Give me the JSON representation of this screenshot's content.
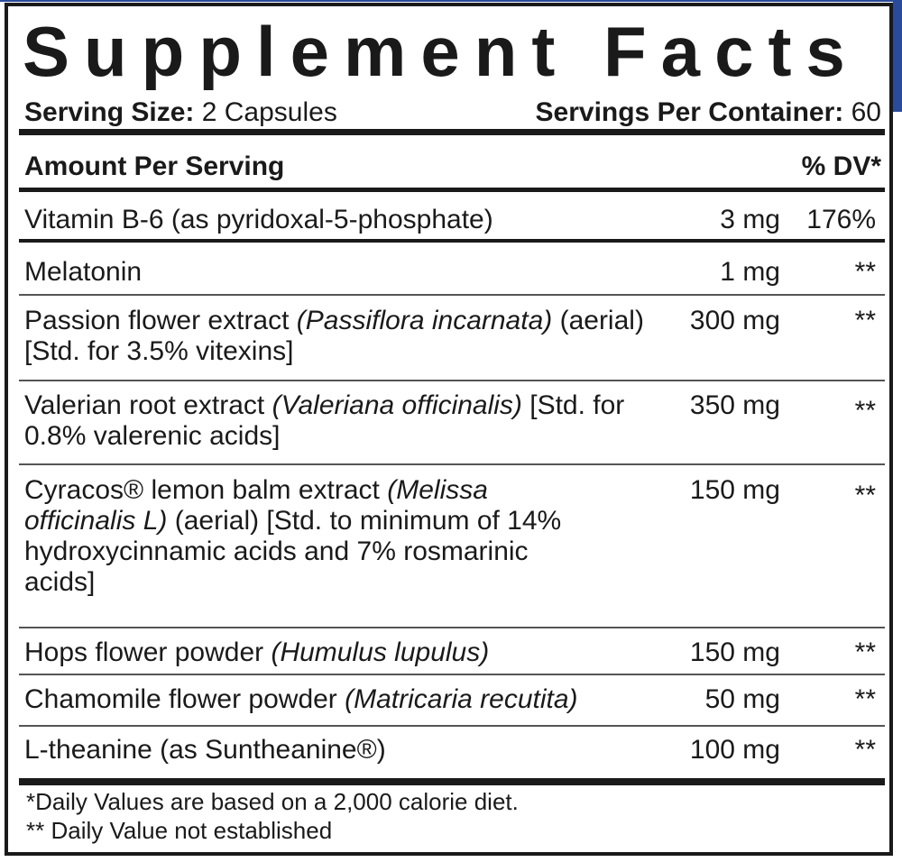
{
  "title": "Supplement Facts",
  "serving_size_label": "Serving Size:",
  "serving_size_value": "2 Capsules",
  "servings_per_container_label": "Servings Per Container:",
  "servings_per_container_value": "60",
  "header": {
    "amount": "Amount Per Serving",
    "dv": "% DV*"
  },
  "rows": [
    {
      "name": "Vitamin B-6 (as pyridoxal-5-phosphate)",
      "latin": "",
      "extra": "",
      "amount": "3 mg",
      "dv": "176%"
    },
    {
      "name": "Melatonin",
      "latin": "",
      "extra": "",
      "amount": "1 mg",
      "dv": "**"
    },
    {
      "name": "Passion flower extract ",
      "latin": "(Passiflora incarnata)",
      "extra": " (aerial) [Std. for 3.5% vitexins]",
      "amount": "300 mg",
      "dv": "**"
    },
    {
      "name": "Valerian root extract ",
      "latin": "(Valeriana officinalis)",
      "extra": " [Std. for 0.8% valerenic acids]",
      "amount": "350 mg",
      "dv": "**"
    },
    {
      "name": "Cyracos® lemon balm extract ",
      "latin": "(Melissa officinalis L)",
      "extra": " (aerial) [Std. to minimum of 14% hydroxycinnamic acids and 7% rosmarinic acids]",
      "amount": "150 mg",
      "dv": "**"
    },
    {
      "name": "Hops flower powder ",
      "latin": "(Humulus lupulus)",
      "extra": "",
      "amount": "150 mg",
      "dv": "**"
    },
    {
      "name": "Chamomile flower powder ",
      "latin": "(Matricaria recutita)",
      "extra": "",
      "amount": "50 mg",
      "dv": "**"
    },
    {
      "name": "L-theanine (as Suntheanine®)",
      "latin": "",
      "extra": "",
      "amount": "100 mg",
      "dv": "**"
    }
  ],
  "footnotes": [
    "*Daily Values are based on a 2,000 calorie diet.",
    "** Daily Value not established"
  ],
  "colors": {
    "accent_blue": "#2a4a9a",
    "ink": "#1a1a1a"
  }
}
